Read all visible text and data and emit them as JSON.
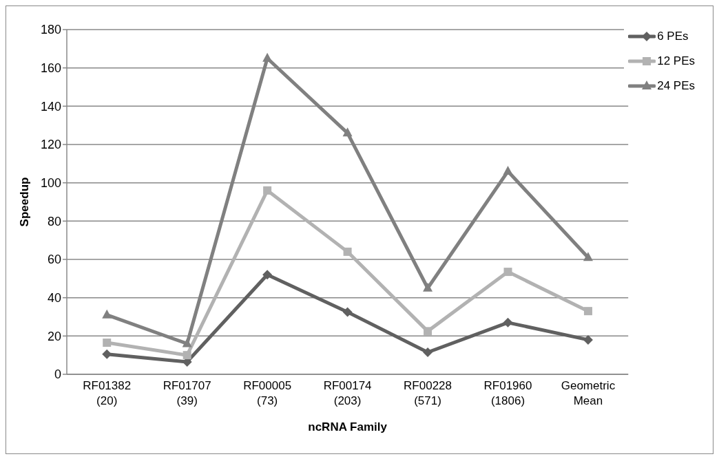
{
  "chart_data": {
    "type": "line",
    "xlabel": "ncRNA Family",
    "ylabel": "Speedup",
    "categories": [
      "RF01382\n(20)",
      "RF01707\n(39)",
      "RF00005\n(73)",
      "RF00174\n(203)",
      "RF00228\n(571)",
      "RF01960\n(1806)",
      "Geometric\nMean"
    ],
    "series": [
      {
        "name": "6 PEs",
        "color": "#606060",
        "marker": "diamond",
        "values": [
          10.5,
          6.5,
          52,
          32.5,
          11.5,
          27,
          18
        ]
      },
      {
        "name": "12 PEs",
        "color": "#b2b2b2",
        "marker": "square",
        "values": [
          16.5,
          10,
          96,
          64,
          22.5,
          53.5,
          33
        ]
      },
      {
        "name": "24 PEs",
        "color": "#808080",
        "marker": "triangle",
        "values": [
          31,
          16,
          165,
          126,
          45,
          106,
          61
        ]
      }
    ],
    "ylim": [
      0,
      180
    ],
    "yticks": [
      0,
      20,
      40,
      60,
      80,
      100,
      120,
      140,
      160,
      180
    ],
    "grid": "y",
    "legend": "top right",
    "line_style": "solid"
  }
}
